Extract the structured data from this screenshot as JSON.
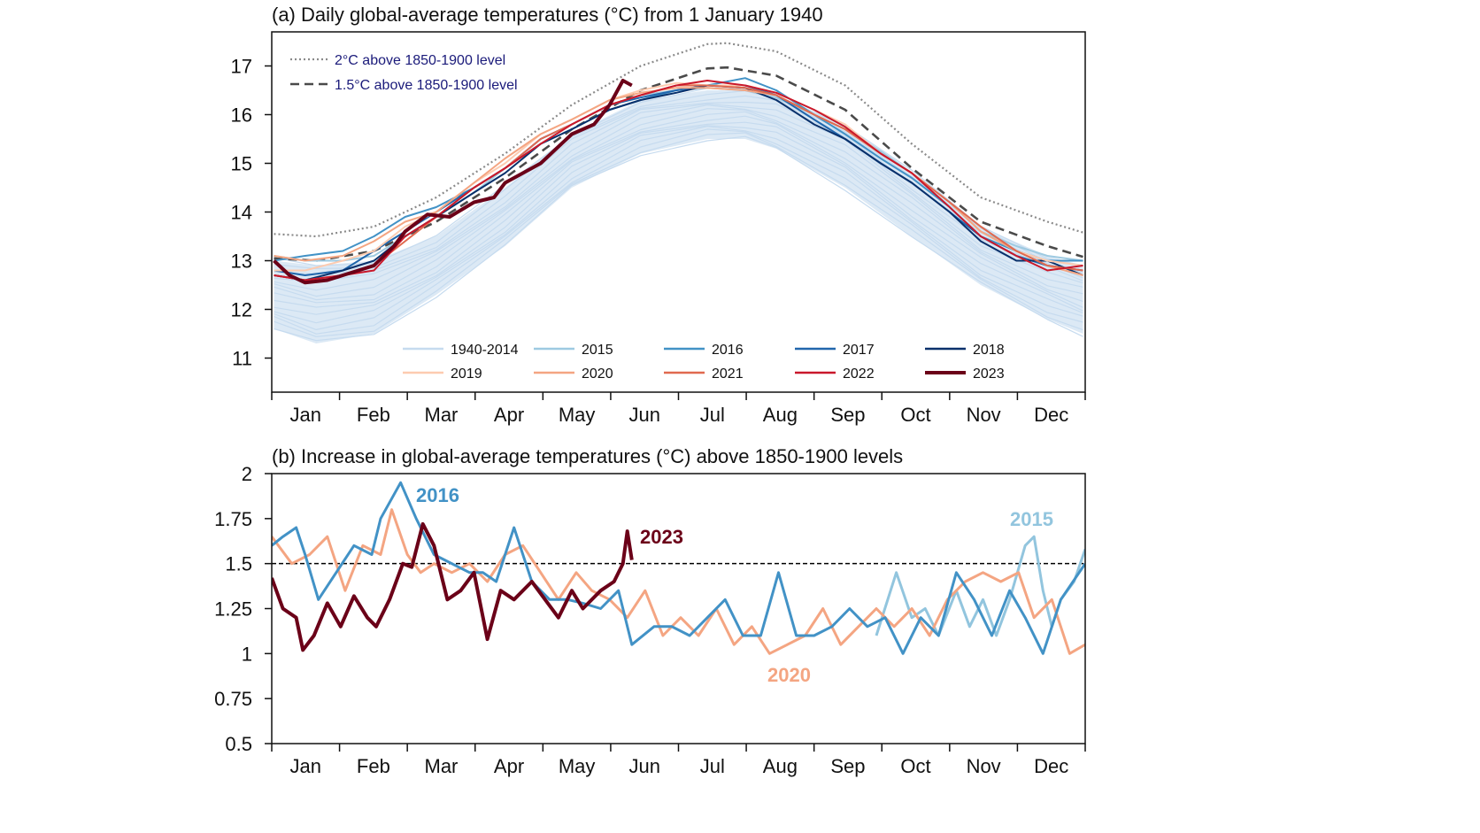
{
  "chart_data": [
    {
      "type": "line",
      "title": "(a) Daily global-average temperatures (°C) from 1 January 1940",
      "x_unit": "day of year",
      "x_tick_labels": [
        "Jan",
        "Feb",
        "Mar",
        "Apr",
        "May",
        "Jun",
        "Jul",
        "Aug",
        "Sep",
        "Oct",
        "Nov",
        "Dec"
      ],
      "ylim": [
        10.3,
        17.7
      ],
      "y_ticks": [
        11,
        12,
        13,
        14,
        15,
        16,
        17
      ],
      "grid": false,
      "reference_lines": [
        {
          "name": "2°C above 1850-1900 level",
          "style": "dotted",
          "color": "#8a8a8a",
          "x": [
            1,
            20,
            46,
            74,
            105,
            135,
            166,
            196,
            205,
            227,
            258,
            288,
            319,
            349,
            365
          ],
          "y": [
            13.55,
            13.5,
            13.7,
            14.3,
            15.2,
            16.2,
            17.0,
            17.45,
            17.47,
            17.3,
            16.6,
            15.4,
            14.3,
            13.8,
            13.58
          ]
        },
        {
          "name": "1.5°C above 1850-1900 level",
          "style": "dashed",
          "color": "#4a4a4a",
          "x": [
            1,
            20,
            46,
            74,
            105,
            135,
            166,
            196,
            205,
            227,
            258,
            288,
            319,
            349,
            365
          ],
          "y": [
            13.05,
            13.0,
            13.2,
            13.8,
            14.7,
            15.7,
            16.5,
            16.95,
            16.97,
            16.8,
            16.1,
            14.9,
            13.8,
            13.3,
            13.08
          ]
        }
      ],
      "legend_placement": "bottom-right",
      "band_1940_2014": {
        "name": "1940-2014",
        "color": "#c6dbef",
        "x": [
          1,
          20,
          46,
          74,
          105,
          135,
          166,
          196,
          213,
          227,
          258,
          288,
          319,
          349,
          365
        ],
        "low": [
          11.6,
          11.3,
          11.5,
          12.3,
          13.3,
          14.5,
          15.2,
          15.5,
          15.5,
          15.3,
          14.5,
          13.5,
          12.5,
          11.8,
          11.5
        ],
        "high": [
          13.0,
          12.9,
          13.0,
          13.5,
          14.5,
          15.6,
          16.3,
          16.5,
          16.5,
          16.4,
          15.8,
          14.8,
          13.7,
          13.1,
          12.9
        ]
      },
      "x": [
        1,
        15,
        32,
        46,
        60,
        74,
        91,
        105,
        121,
        135,
        152,
        166,
        182,
        196,
        213,
        227,
        244,
        258,
        274,
        288,
        305,
        319,
        335,
        349,
        365
      ],
      "series": [
        {
          "name": "2015",
          "color": "#9ecae1",
          "width": 2,
          "values": [
            13.1,
            13.0,
            13.0,
            13.1,
            13.5,
            13.9,
            14.4,
            14.9,
            15.5,
            15.8,
            16.2,
            16.4,
            16.5,
            16.55,
            16.5,
            16.35,
            16.0,
            15.7,
            15.25,
            14.8,
            14.2,
            13.6,
            13.3,
            13.1,
            13.0
          ]
        },
        {
          "name": "2016",
          "color": "#4292c6",
          "width": 2,
          "values": [
            13.0,
            13.1,
            13.2,
            13.5,
            13.9,
            14.1,
            14.5,
            14.9,
            15.4,
            15.7,
            16.1,
            16.3,
            16.5,
            16.6,
            16.75,
            16.5,
            16.0,
            15.6,
            15.1,
            14.7,
            14.1,
            13.5,
            13.2,
            13.0,
            13.0
          ]
        },
        {
          "name": "2017",
          "color": "#2166ac",
          "width": 2,
          "values": [
            12.8,
            12.7,
            12.8,
            13.2,
            13.6,
            14.0,
            14.5,
            14.9,
            15.5,
            15.8,
            16.2,
            16.35,
            16.5,
            16.6,
            16.6,
            16.4,
            15.9,
            15.5,
            15.0,
            14.6,
            14.0,
            13.5,
            13.1,
            12.9,
            12.8
          ]
        },
        {
          "name": "2018",
          "color": "#08306b",
          "width": 2,
          "values": [
            12.7,
            12.6,
            12.8,
            13.0,
            13.5,
            13.9,
            14.4,
            14.8,
            15.4,
            15.7,
            16.1,
            16.3,
            16.45,
            16.6,
            16.55,
            16.3,
            15.8,
            15.5,
            15.0,
            14.6,
            14.0,
            13.4,
            13.0,
            13.0,
            12.7
          ]
        },
        {
          "name": "2019",
          "color": "#fdcbb0",
          "width": 2,
          "values": [
            12.8,
            12.8,
            13.0,
            13.2,
            13.7,
            14.0,
            14.6,
            15.0,
            15.6,
            15.9,
            16.3,
            16.5,
            16.65,
            16.6,
            16.6,
            16.45,
            16.1,
            15.8,
            15.2,
            14.8,
            14.2,
            13.6,
            13.2,
            13.0,
            12.9
          ]
        },
        {
          "name": "2020",
          "color": "#f4a582",
          "width": 2,
          "values": [
            13.1,
            13.0,
            13.1,
            13.4,
            13.8,
            14.0,
            14.6,
            15.1,
            15.6,
            15.9,
            16.3,
            16.45,
            16.55,
            16.55,
            16.5,
            16.4,
            16.0,
            15.7,
            15.2,
            14.8,
            14.2,
            13.6,
            13.2,
            12.9,
            12.7
          ]
        },
        {
          "name": "2021",
          "color": "#e0694f",
          "width": 2,
          "values": [
            12.7,
            12.6,
            12.7,
            12.9,
            13.4,
            13.9,
            14.5,
            14.9,
            15.5,
            15.8,
            16.2,
            16.4,
            16.6,
            16.6,
            16.55,
            16.4,
            16.0,
            15.7,
            15.2,
            14.8,
            14.2,
            13.7,
            13.2,
            12.9,
            12.8
          ]
        },
        {
          "name": "2022",
          "color": "#c9182b",
          "width": 2,
          "values": [
            12.7,
            12.6,
            12.7,
            12.8,
            13.5,
            13.9,
            14.5,
            14.9,
            15.4,
            15.8,
            16.2,
            16.4,
            16.6,
            16.7,
            16.6,
            16.45,
            16.1,
            15.75,
            15.2,
            14.8,
            14.1,
            13.5,
            13.1,
            12.8,
            12.9
          ]
        },
        {
          "name": "2023",
          "color": "#6b0018",
          "width": 4,
          "x": [
            1,
            8,
            15,
            25,
            32,
            46,
            55,
            60,
            70,
            80,
            91,
            100,
            105,
            121,
            135,
            145,
            152,
            158,
            162
          ],
          "values": [
            13.0,
            12.7,
            12.55,
            12.6,
            12.7,
            12.9,
            13.3,
            13.6,
            13.95,
            13.9,
            14.2,
            14.3,
            14.6,
            15.0,
            15.6,
            15.8,
            16.2,
            16.7,
            16.6
          ]
        }
      ]
    },
    {
      "type": "line",
      "title": "(b) Increase in global-average temperatures (°C) above 1850-1900 levels",
      "x_unit": "day of year",
      "x_tick_labels": [
        "Jan",
        "Feb",
        "Mar",
        "Apr",
        "May",
        "Jun",
        "Jul",
        "Aug",
        "Sep",
        "Oct",
        "Nov",
        "Dec"
      ],
      "ylim": [
        0.5,
        2
      ],
      "y_ticks": [
        "0.5",
        "0.75",
        "1",
        "1.25",
        "1.5",
        "1.75",
        "2"
      ],
      "grid": false,
      "reference_line": {
        "y": 1.5,
        "style": "dashed",
        "color": "#000000"
      },
      "series": [
        {
          "name": "2015",
          "color": "#92c5de",
          "width": 3,
          "x": [
            272,
            281,
            288,
            294,
            300,
            308,
            314,
            320,
            326,
            332,
            339,
            343,
            347,
            351,
            355,
            361,
            366
          ],
          "values": [
            1.1,
            1.45,
            1.2,
            1.25,
            1.1,
            1.35,
            1.15,
            1.3,
            1.1,
            1.3,
            1.6,
            1.65,
            1.35,
            1.15,
            1.3,
            1.4,
            1.58
          ]
        },
        {
          "name": "2020",
          "color": "#f4a582",
          "width": 3,
          "x": [
            0,
            9,
            17,
            25,
            33,
            41,
            49,
            54,
            61,
            67,
            73,
            81,
            89,
            97,
            105,
            113,
            121,
            129,
            137,
            144,
            152,
            160,
            168,
            176,
            184,
            192,
            200,
            208,
            216,
            224,
            232,
            240,
            248,
            256,
            264,
            272,
            280,
            288,
            296,
            304,
            312,
            320,
            328,
            336,
            343,
            351,
            359,
            366
          ],
          "values": [
            1.65,
            1.5,
            1.55,
            1.65,
            1.35,
            1.6,
            1.55,
            1.8,
            1.55,
            1.45,
            1.5,
            1.45,
            1.5,
            1.4,
            1.55,
            1.6,
            1.45,
            1.3,
            1.45,
            1.35,
            1.3,
            1.2,
            1.35,
            1.1,
            1.2,
            1.1,
            1.25,
            1.05,
            1.15,
            1.0,
            1.05,
            1.1,
            1.25,
            1.05,
            1.15,
            1.25,
            1.15,
            1.25,
            1.1,
            1.3,
            1.4,
            1.45,
            1.4,
            1.45,
            1.2,
            1.3,
            1.0,
            1.05
          ]
        },
        {
          "name": "2016",
          "color": "#4292c6",
          "width": 3,
          "x": [
            0,
            5,
            11,
            15,
            21,
            29,
            37,
            45,
            49,
            58,
            65,
            73,
            81,
            89,
            95,
            101,
            109,
            117,
            125,
            133,
            140,
            148,
            156,
            162,
            172,
            180,
            188,
            196,
            204,
            212,
            220,
            228,
            236,
            244,
            252,
            260,
            268,
            276,
            284,
            292,
            300,
            308,
            316,
            324,
            332,
            339,
            347,
            355,
            366
          ],
          "values": [
            1.6,
            1.65,
            1.7,
            1.55,
            1.3,
            1.45,
            1.6,
            1.55,
            1.75,
            1.95,
            1.75,
            1.55,
            1.5,
            1.45,
            1.45,
            1.4,
            1.7,
            1.4,
            1.3,
            1.3,
            1.28,
            1.25,
            1.35,
            1.05,
            1.15,
            1.15,
            1.1,
            1.2,
            1.3,
            1.1,
            1.1,
            1.45,
            1.1,
            1.1,
            1.15,
            1.25,
            1.15,
            1.2,
            1.0,
            1.2,
            1.1,
            1.45,
            1.3,
            1.1,
            1.35,
            1.2,
            1.0,
            1.3,
            1.5
          ]
        },
        {
          "name": "2023",
          "color": "#6b0018",
          "width": 4,
          "x": [
            0,
            5,
            11,
            14,
            19,
            25,
            31,
            37,
            43,
            47,
            53,
            59,
            63,
            68,
            73,
            79,
            85,
            91,
            97,
            103,
            109,
            117,
            123,
            129,
            135,
            140,
            148,
            154,
            158,
            160,
            162
          ],
          "values": [
            1.42,
            1.25,
            1.2,
            1.02,
            1.1,
            1.28,
            1.15,
            1.32,
            1.2,
            1.15,
            1.3,
            1.5,
            1.48,
            1.72,
            1.6,
            1.3,
            1.35,
            1.45,
            1.08,
            1.35,
            1.3,
            1.4,
            1.3,
            1.2,
            1.35,
            1.25,
            1.35,
            1.4,
            1.5,
            1.68,
            1.52
          ]
        }
      ],
      "annotations": [
        {
          "text": "2016",
          "series": "2016"
        },
        {
          "text": "2023",
          "series": "2023"
        },
        {
          "text": "2015",
          "series": "2015"
        },
        {
          "text": "2020",
          "series": "2020"
        }
      ]
    }
  ]
}
